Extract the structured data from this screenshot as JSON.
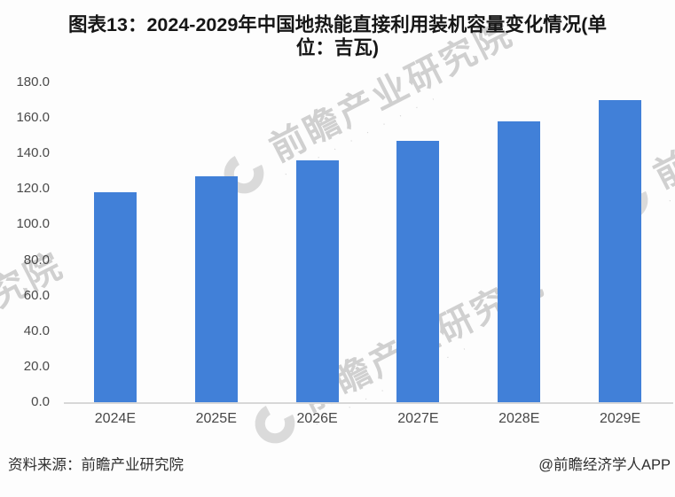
{
  "title_lines": [
    "图表13：2024-2029年中国地热能直接利用装机容量变化情况(单",
    "位：吉瓦)"
  ],
  "chart_data": {
    "type": "bar",
    "title": "图表13：2024-2029年中国地热能直接利用装机容量变化情况(单位：吉瓦)",
    "unit": "吉瓦",
    "categories": [
      "2024E",
      "2025E",
      "2026E",
      "2027E",
      "2028E",
      "2029E"
    ],
    "values": [
      118,
      127,
      136,
      147,
      158,
      170
    ],
    "ylim": [
      0,
      180
    ],
    "ytick_step": 20,
    "yticks": [
      "180.0",
      "160.0",
      "140.0",
      "120.0",
      "100.0",
      "80.0",
      "60.0",
      "40.0",
      "20.0",
      "0.0"
    ],
    "xlabel": "",
    "ylabel": "",
    "grid": false,
    "legend_position": "none",
    "bar_color": "#4180d8",
    "axis_line_color": "#d8d8d8"
  },
  "footer": {
    "source": "资料来源：前瞻产业研究院",
    "credit": "@前瞻经济学人APP"
  },
  "watermark": {
    "icon": "qianzhan-arc-logo",
    "text": "前瞻产业研究院",
    "subtext": "· · · · · · · · · ·",
    "color": "#c9c9c9"
  }
}
